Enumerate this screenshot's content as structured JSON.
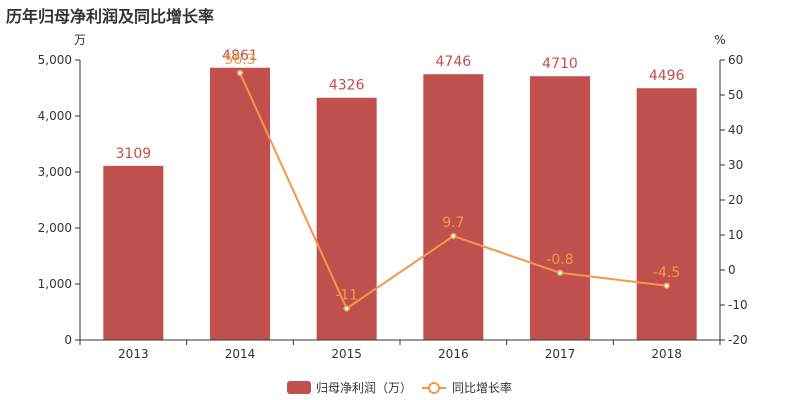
{
  "title": "历年归母净利润及同比增长率",
  "chart_data": {
    "type": "bar",
    "categories": [
      "2013",
      "2014",
      "2015",
      "2016",
      "2017",
      "2018"
    ],
    "series": [
      {
        "name": "归母净利润（万）",
        "type": "bar",
        "axis": "left",
        "values": [
          3109,
          4861,
          4326,
          4746,
          4710,
          4496
        ],
        "labels": [
          "3109",
          "4861",
          "4326",
          "4746",
          "4710",
          "4496"
        ]
      },
      {
        "name": "同比增长率",
        "type": "line",
        "axis": "right",
        "x": [
          "2014",
          "2015",
          "2016",
          "2017",
          "2018"
        ],
        "values": [
          56.3,
          -11,
          9.7,
          -0.8,
          -4.5
        ],
        "labels": [
          "56.3",
          "-11",
          "9.7",
          "-0.8",
          "-4.5"
        ]
      }
    ],
    "left_axis": {
      "unit": "万",
      "range": [
        0,
        5000
      ],
      "ticks": [
        "0",
        "1,000",
        "2,000",
        "3,000",
        "4,000",
        "5,000"
      ],
      "tick_values": [
        0,
        1000,
        2000,
        3000,
        4000,
        5000
      ]
    },
    "right_axis": {
      "unit": "%",
      "range": [
        -20,
        60
      ],
      "ticks": [
        "-20",
        "-10",
        "0",
        "10",
        "20",
        "30",
        "40",
        "50",
        "60"
      ],
      "tick_values": [
        -20,
        -10,
        0,
        10,
        20,
        30,
        40,
        50,
        60
      ]
    },
    "legend": {
      "position": "bottom-center"
    },
    "grid": false,
    "colors": {
      "bar": "#c0504d",
      "bar_label": "#c0504d",
      "line": "#f79646",
      "line_label": "#f79646",
      "axis": "#333333"
    }
  }
}
